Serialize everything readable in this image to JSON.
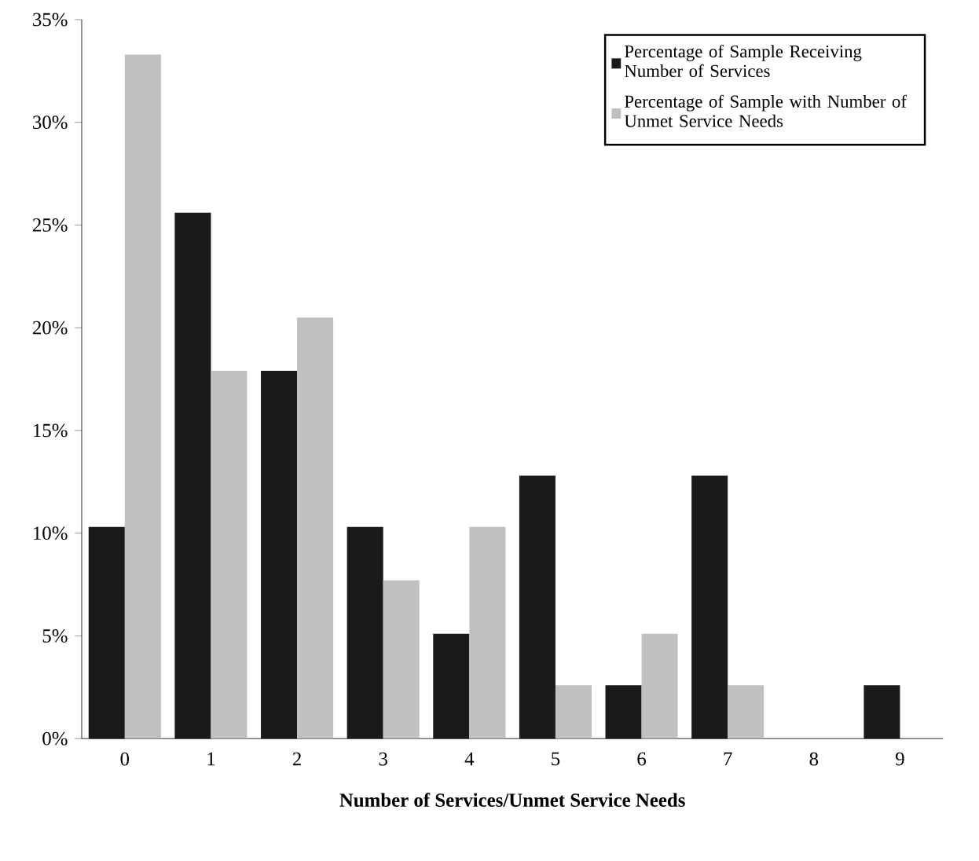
{
  "chart_data": {
    "type": "bar",
    "xlabel": "Number of Services/Unmet Service Needs",
    "categories": [
      "0",
      "1",
      "2",
      "3",
      "4",
      "5",
      "6",
      "7",
      "8",
      "9"
    ],
    "series": [
      {
        "name": "Percentage of Sample Receiving Number of Services",
        "color": "#1a1a1a",
        "values": [
          10.3,
          25.6,
          17.9,
          10.3,
          5.1,
          12.8,
          2.6,
          12.8,
          0,
          2.6
        ]
      },
      {
        "name": "Percentage of Sample with Number of Unmet Service Needs",
        "color": "#c0c0c0",
        "values": [
          33.3,
          17.9,
          20.5,
          7.7,
          10.3,
          2.6,
          5.1,
          2.6,
          0,
          0
        ]
      }
    ],
    "ylim": [
      0,
      35
    ],
    "yticks": [
      {
        "value": 0,
        "label": "0%"
      },
      {
        "value": 5,
        "label": "5%"
      },
      {
        "value": 10,
        "label": "10%"
      },
      {
        "value": 15,
        "label": "15%"
      },
      {
        "value": 20,
        "label": "20%"
      },
      {
        "value": 25,
        "label": "25%"
      },
      {
        "value": 30,
        "label": "30%"
      },
      {
        "value": 35,
        "label": "35%"
      }
    ],
    "legend": "top right"
  }
}
